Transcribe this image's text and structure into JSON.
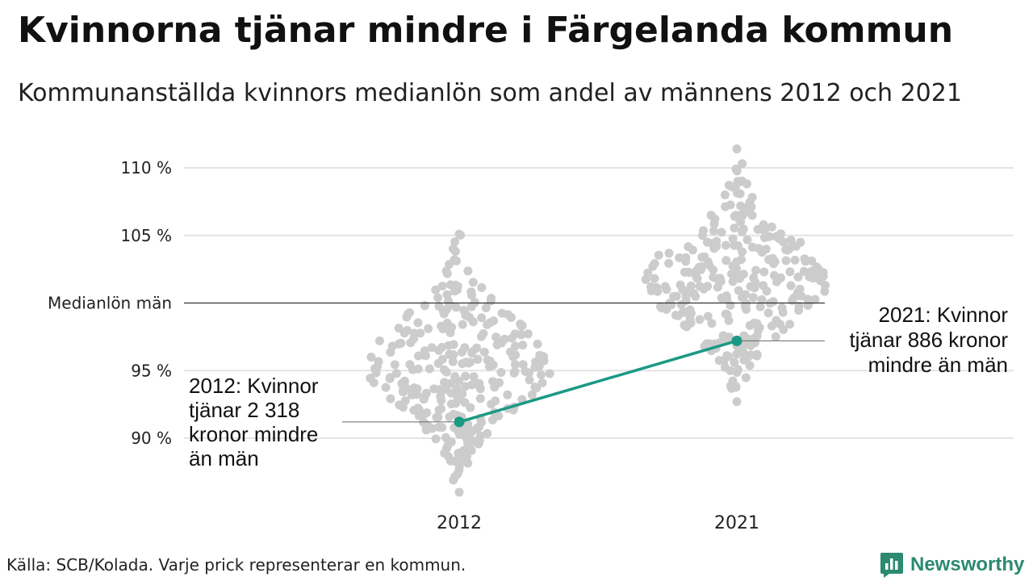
{
  "header": {
    "title": "Kvinnorna tjänar mindre i Färgelanda kommun",
    "subtitle": "Kommunanställda kvinnors medianlön som andel av männens 2012 och 2021"
  },
  "footer": {
    "source": "Källa: SCB/Kolada. Varje prick representerar en kommun.",
    "brand": "Newsworthy",
    "brand_icon": "chart-bar-icon"
  },
  "colors": {
    "dots": "#cccccc",
    "highlight": "#1a9a85",
    "grid": "#e3e3e3",
    "reference": "#333333",
    "brand": "#2b8a6f"
  },
  "chart_data": {
    "type": "scatter",
    "categories": [
      "2012",
      "2021"
    ],
    "ylim": [
      86,
      111.5
    ],
    "y_ticks": [
      {
        "value": 110,
        "label": "110 %"
      },
      {
        "value": 105,
        "label": "105 %"
      },
      {
        "value": 100,
        "label": "Medianlön män"
      },
      {
        "value": 95,
        "label": "95 %"
      },
      {
        "value": 90,
        "label": "90 %"
      }
    ],
    "reference_line": {
      "value": 100,
      "label": "Medianlön män"
    },
    "highlight": {
      "name": "Färgelanda",
      "values": [
        {
          "x": "2012",
          "y": 91.2
        },
        {
          "x": "2021",
          "y": 97.2
        }
      ]
    },
    "annotations": [
      {
        "x": "2012",
        "lines": [
          "2012: Kvinnor",
          "tjänar 2 318",
          "kronor mindre",
          "än män"
        ]
      },
      {
        "x": "2021",
        "lines": [
          "2021: Kvinnor",
          "tjänar 886 kronor",
          "mindre än män"
        ]
      }
    ],
    "distribution": [
      {
        "x": "2012",
        "min": 86.0,
        "max": 105.1,
        "center": 95.5,
        "count": 290
      },
      {
        "x": "2021",
        "min": 92.7,
        "max": 111.4,
        "center": 101.6,
        "count": 290
      }
    ],
    "grid": true,
    "legend": "none"
  }
}
